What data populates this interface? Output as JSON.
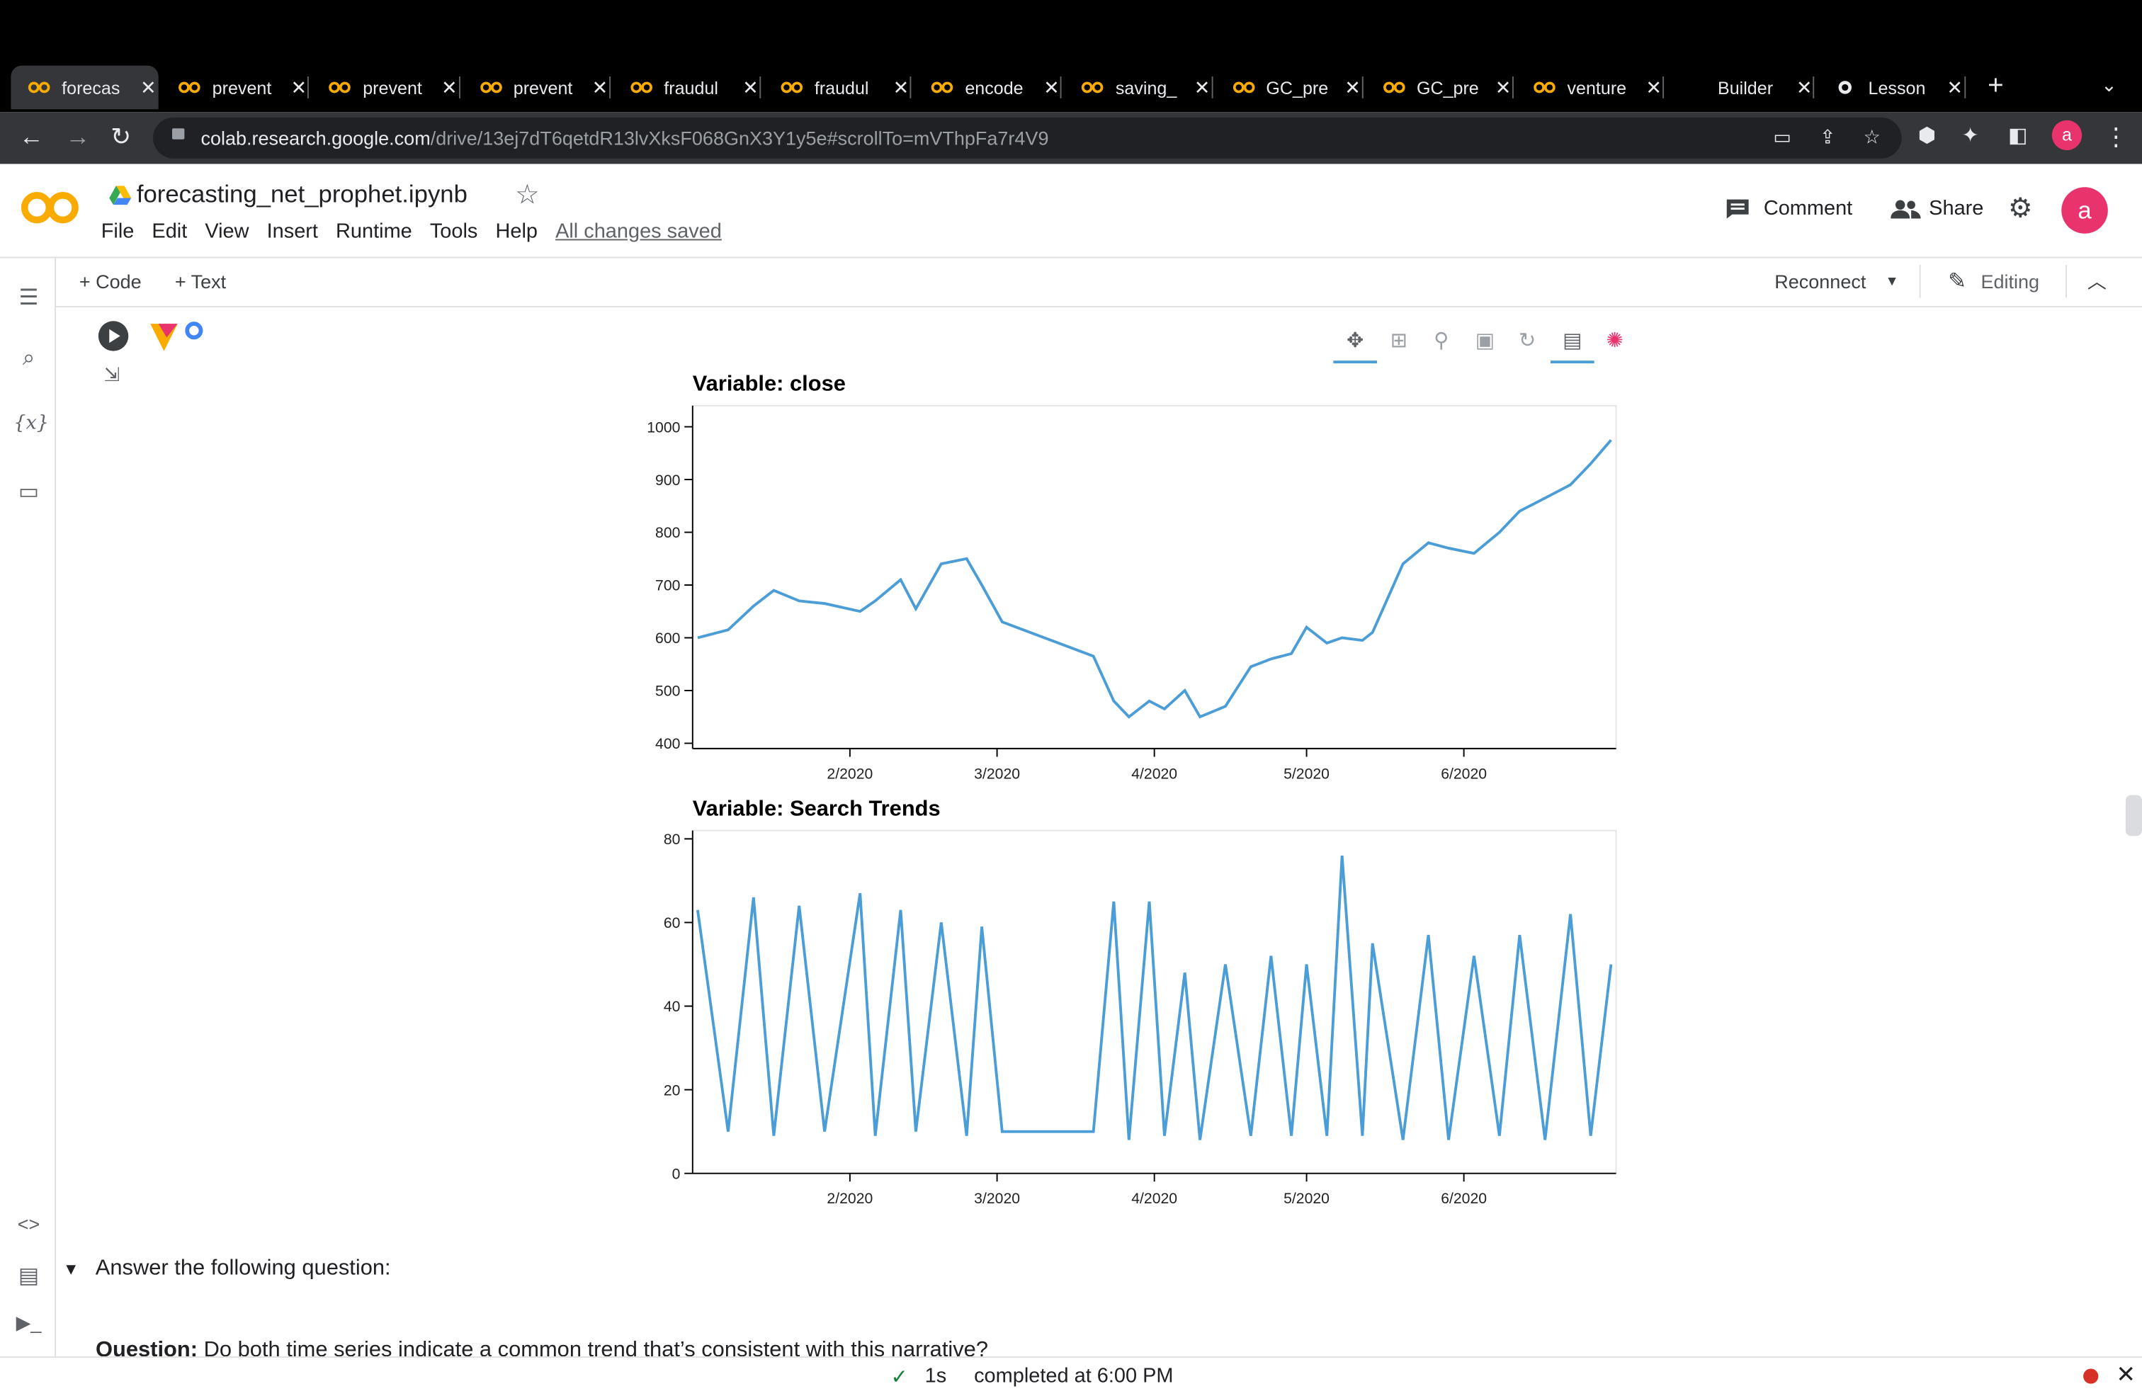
{
  "browser": {
    "tabs": [
      {
        "title": "forecas",
        "logo": "colab",
        "active": true
      },
      {
        "title": "prevent",
        "logo": "colab"
      },
      {
        "title": "prevent",
        "logo": "colab"
      },
      {
        "title": "prevent",
        "logo": "colab"
      },
      {
        "title": "fraudul",
        "logo": "colab"
      },
      {
        "title": "fraudul",
        "logo": "colab"
      },
      {
        "title": "encode",
        "logo": "colab"
      },
      {
        "title": "saving_",
        "logo": "colab"
      },
      {
        "title": "GC_pre",
        "logo": "colab"
      },
      {
        "title": "GC_pre",
        "logo": "colab"
      },
      {
        "title": "venture",
        "logo": "colab"
      },
      {
        "title": "Builder",
        "logo": "none"
      },
      {
        "title": "Lesson",
        "logo": "github"
      }
    ],
    "url_host": "colab.research.google.com",
    "url_path": "/drive/13ej7dT6qetdR13lvXksF068GnX3Y1y5e#scrollTo=mVThpFa7r4V9",
    "profile_initial": "a"
  },
  "notebook": {
    "title": "forecasting_net_prophet.ipynb",
    "menu": [
      "File",
      "Edit",
      "View",
      "Insert",
      "Runtime",
      "Tools",
      "Help"
    ],
    "save_status": "All changes saved",
    "comment_label": "Comment",
    "share_label": "Share",
    "avatar_initial": "a"
  },
  "toolbar": {
    "add_code": "+ Code",
    "add_text": "+ Text",
    "reconnect": "Reconnect",
    "editing": "Editing"
  },
  "sidebar_icons": [
    "table-of-contents-icon",
    "search-icon",
    "variables-icon",
    "files-icon",
    "code-snippets-icon",
    "command-palette-icon",
    "terminal-icon"
  ],
  "plot_tools": [
    "pan-icon",
    "box-zoom-icon",
    "wheel-zoom-icon",
    "save-icon",
    "reset-icon",
    "hover-icon",
    "bokeh-logo-icon"
  ],
  "colors": {
    "line": "#4a9dd6",
    "accent": "#e8336d",
    "colab_orange": "#f9ab00"
  },
  "chart_data": [
    {
      "type": "line",
      "title": "Variable: close",
      "xlabel": "",
      "ylabel": "",
      "x_ticks": [
        "2/2020",
        "3/2020",
        "4/2020",
        "5/2020",
        "6/2020"
      ],
      "ylim": [
        390,
        1040
      ],
      "y_ticks": [
        400,
        500,
        600,
        700,
        800,
        900,
        1000
      ],
      "grid": false,
      "x": [
        "2020-01-02",
        "2020-01-08",
        "2020-01-13",
        "2020-01-17",
        "2020-01-22",
        "2020-01-27",
        "2020-02-03",
        "2020-02-06",
        "2020-02-11",
        "2020-02-14",
        "2020-02-19",
        "2020-02-24",
        "2020-02-27",
        "2020-03-02",
        "2020-03-20",
        "2020-03-24",
        "2020-03-27",
        "2020-03-31",
        "2020-04-03",
        "2020-04-07",
        "2020-04-10",
        "2020-04-15",
        "2020-04-20",
        "2020-04-24",
        "2020-04-28",
        "2020-05-01",
        "2020-05-05",
        "2020-05-08",
        "2020-05-12",
        "2020-05-14",
        "2020-05-20",
        "2020-05-25",
        "2020-05-29",
        "2020-06-03",
        "2020-06-08",
        "2020-06-12",
        "2020-06-17",
        "2020-06-22",
        "2020-06-26",
        "2020-06-30"
      ],
      "series": [
        {
          "values": [
            600,
            615,
            660,
            690,
            670,
            665,
            650,
            670,
            710,
            655,
            740,
            750,
            700,
            630,
            565,
            480,
            450,
            480,
            465,
            500,
            450,
            470,
            545,
            560,
            570,
            620,
            590,
            600,
            595,
            610,
            740,
            780,
            770,
            760,
            800,
            840,
            865,
            890,
            930,
            975
          ]
        }
      ]
    },
    {
      "type": "line",
      "title": "Variable: Search Trends",
      "xlabel": "",
      "ylabel": "",
      "x_ticks": [
        "2/2020",
        "3/2020",
        "4/2020",
        "5/2020",
        "6/2020"
      ],
      "ylim": [
        0,
        82
      ],
      "y_ticks": [
        0,
        20,
        40,
        60,
        80
      ],
      "grid": false,
      "x": [
        "2020-01-02",
        "2020-01-08",
        "2020-01-13",
        "2020-01-17",
        "2020-01-22",
        "2020-01-27",
        "2020-02-03",
        "2020-02-06",
        "2020-02-11",
        "2020-02-14",
        "2020-02-19",
        "2020-02-24",
        "2020-02-27",
        "2020-03-02",
        "2020-03-20",
        "2020-03-24",
        "2020-03-27",
        "2020-03-31",
        "2020-04-03",
        "2020-04-07",
        "2020-04-10",
        "2020-04-15",
        "2020-04-20",
        "2020-04-24",
        "2020-04-28",
        "2020-05-01",
        "2020-05-05",
        "2020-05-08",
        "2020-05-12",
        "2020-05-14",
        "2020-05-20",
        "2020-05-25",
        "2020-05-29",
        "2020-06-03",
        "2020-06-08",
        "2020-06-12",
        "2020-06-17",
        "2020-06-22",
        "2020-06-26",
        "2020-06-30"
      ],
      "series": [
        {
          "values": [
            63,
            10,
            66,
            9,
            64,
            10,
            67,
            9,
            63,
            10,
            60,
            9,
            59,
            10,
            10,
            65,
            8,
            65,
            9,
            48,
            8,
            50,
            9,
            52,
            9,
            50,
            9,
            76,
            9,
            55,
            8,
            57,
            8,
            52,
            9,
            57,
            8,
            62,
            9,
            50
          ]
        }
      ]
    }
  ],
  "markdown": {
    "heading": "Answer the following question:",
    "question_label": "Question:",
    "question_text": " Do both time series indicate a common trend that’s consistent with this narrative?"
  },
  "status": {
    "duration": "1s",
    "completed": "completed at 6:00 PM"
  }
}
